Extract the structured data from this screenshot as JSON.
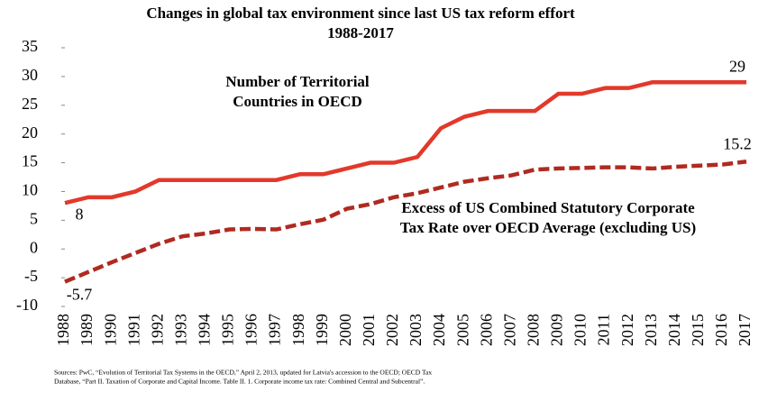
{
  "chart_data": {
    "type": "line",
    "title": "Changes in global tax environment since last US tax reform effort",
    "subtitle": "1988-2017",
    "categories": [
      "1988",
      "1989",
      "1990",
      "1991",
      "1992",
      "1993",
      "1994",
      "1995",
      "1996",
      "1997",
      "1998",
      "1999",
      "2000",
      "2001",
      "2002",
      "2003",
      "2004",
      "2005",
      "2006",
      "2007",
      "2008",
      "2009",
      "2010",
      "2011",
      "2012",
      "2013",
      "2014",
      "2015",
      "2016",
      "2017"
    ],
    "series": [
      {
        "name": "Number of Territorial Countries in OECD",
        "color": "#e2392b",
        "dashed": false,
        "values": [
          8,
          9,
          9,
          10,
          12,
          12,
          12,
          12,
          12,
          12,
          13,
          13,
          14,
          15,
          15,
          16,
          21,
          23,
          24,
          24,
          24,
          27,
          27,
          28,
          28,
          29,
          29,
          29,
          29,
          29
        ]
      },
      {
        "name": "Excess of US Combined Statutory Corporate Tax Rate over OECD Average (excluding US)",
        "color": "#b02a20",
        "dashed": true,
        "values": [
          -5.7,
          -4,
          -2.3,
          -0.7,
          0.9,
          2.2,
          2.7,
          3.4,
          3.5,
          3.4,
          4.3,
          5.1,
          7,
          7.8,
          9,
          9.7,
          10.7,
          11.7,
          12.3,
          12.8,
          13.8,
          14,
          14.1,
          14.2,
          14.2,
          14,
          14.3,
          14.5,
          14.7,
          15.2
        ]
      }
    ],
    "annotations": [
      {
        "lines": [
          "Number of Territorial",
          "Countries in OECD"
        ]
      },
      {
        "lines": [
          "Excess of US Combined Statutory Corporate",
          "Tax Rate over OECD Average (excluding US)"
        ]
      }
    ],
    "source": [
      "Sources: PwC, “Evolution of Territorial Tax Systems in the OECD,” April 2, 2013, updated for Latvia's accession to the OECD; OECD Tax",
      "Database, “Part II. Taxation of Corporate and Capital Income. Table II. 1. Corporate income tax rate: Combined Central and Subcentral”."
    ],
    "ylim": [
      -10,
      35
    ],
    "yticks": [
      -10,
      -5,
      0,
      5,
      10,
      15,
      20,
      25,
      30,
      35
    ],
    "grid": false
  }
}
